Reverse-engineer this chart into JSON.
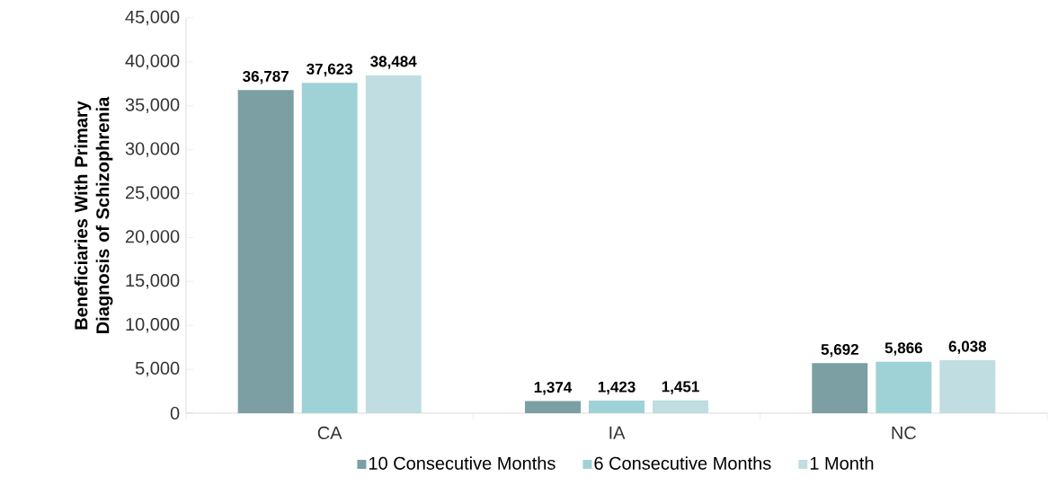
{
  "chart_data": {
    "type": "bar",
    "ylabel": "Beneficiaries With Primary Diagnosis of Schizophrenia",
    "categories": [
      "CA",
      "IA",
      "NC"
    ],
    "series": [
      {
        "name": "10 Consecutive Months",
        "color": "#7b9fa3",
        "values": [
          36787,
          1374,
          5692
        ],
        "value_labels": [
          "36,787",
          "1,374",
          "5,692"
        ]
      },
      {
        "name": "6 Consecutive Months",
        "color": "#9fd2d7",
        "values": [
          37623,
          1423,
          5866
        ],
        "value_labels": [
          "37,623",
          "1,423",
          "5,866"
        ]
      },
      {
        "name": "1 Month",
        "color": "#c0dde1",
        "values": [
          38484,
          1451,
          6038
        ],
        "value_labels": [
          "38,484",
          "1,451",
          "6,038"
        ]
      }
    ],
    "ylim": [
      0,
      45000
    ],
    "yticks": [
      {
        "value": 0,
        "label": "0"
      },
      {
        "value": 5000,
        "label": "5,000"
      },
      {
        "value": 10000,
        "label": "10,000"
      },
      {
        "value": 15000,
        "label": "15,000"
      },
      {
        "value": 20000,
        "label": "20,000"
      },
      {
        "value": 25000,
        "label": "25,000"
      },
      {
        "value": 30000,
        "label": "30,000"
      },
      {
        "value": 35000,
        "label": "35,000"
      },
      {
        "value": 40000,
        "label": "40,000"
      },
      {
        "value": 45000,
        "label": "45,000"
      }
    ],
    "grid": false,
    "legend": "bottom"
  }
}
